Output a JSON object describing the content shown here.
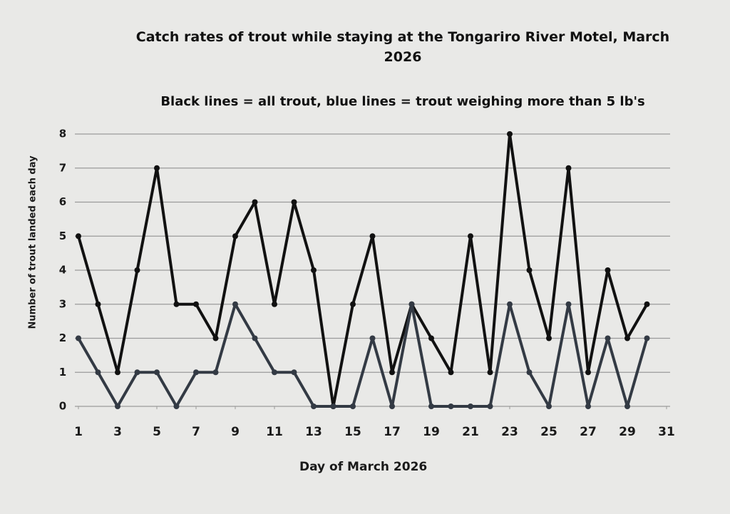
{
  "chart_data": {
    "type": "line",
    "title": "Catch rates of trout while staying at the Tongariro River Motel, March 2026",
    "subtitle": "Black lines = all trout, blue lines = trout weighing more than 5 lb's",
    "x_label": "Day of March 2026",
    "y_label": "Number of trout landed each day",
    "x": [
      1,
      2,
      3,
      4,
      5,
      6,
      7,
      8,
      9,
      10,
      11,
      12,
      13,
      14,
      15,
      16,
      17,
      18,
      19,
      20,
      21,
      22,
      23,
      24,
      25,
      26,
      27,
      28,
      29,
      30
    ],
    "series": [
      {
        "color": "#111111",
        "values": [
          5,
          3,
          1,
          4,
          7,
          3,
          3,
          2,
          5,
          6,
          3,
          6,
          4,
          0,
          3,
          5,
          1,
          3,
          2,
          1,
          5,
          1,
          8,
          4,
          2,
          7,
          1,
          4,
          2,
          3
        ]
      },
      {
        "color": "#333a44",
        "values": [
          2,
          1,
          0,
          1,
          1,
          0,
          1,
          1,
          3,
          2,
          1,
          1,
          0,
          0,
          0,
          2,
          0,
          3,
          0,
          0,
          0,
          0,
          3,
          1,
          0,
          3,
          0,
          2,
          0,
          2
        ]
      }
    ],
    "xlim": [
      1,
      31
    ],
    "xticks": [
      1,
      3,
      5,
      7,
      9,
      11,
      13,
      15,
      17,
      19,
      21,
      23,
      25,
      27,
      29,
      31
    ],
    "ylim": [
      0,
      8
    ],
    "yticks": [
      0,
      1,
      2,
      3,
      4,
      5,
      6,
      7,
      8
    ],
    "grid": true
  }
}
